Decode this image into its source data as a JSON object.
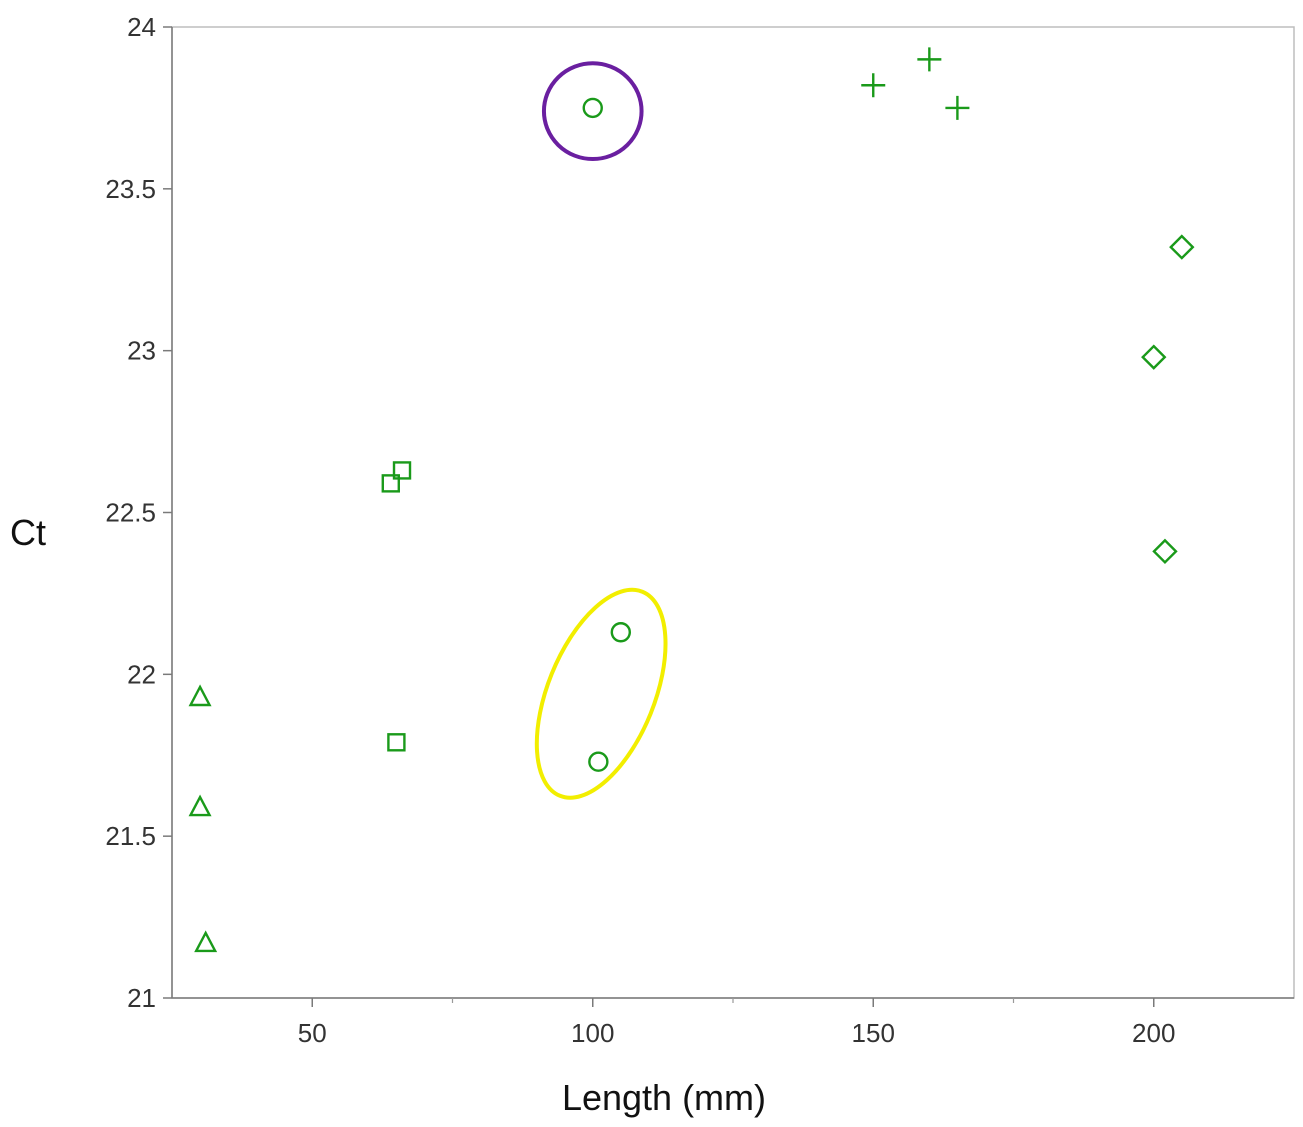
{
  "chart_data": {
    "type": "scatter",
    "title": "",
    "xlabel": "Length (mm)",
    "ylabel": "Ct",
    "xlim": [
      25,
      225
    ],
    "ylim": [
      21,
      24
    ],
    "grid": false,
    "legend": "none",
    "x_ticks": [
      {
        "value": 50,
        "label": "50"
      },
      {
        "value": 100,
        "label": "100"
      },
      {
        "value": 150,
        "label": "150"
      },
      {
        "value": 200,
        "label": "200"
      }
    ],
    "x_minor_ticks": [
      75,
      125,
      175
    ],
    "y_ticks": [
      {
        "value": 21,
        "label": "21"
      },
      {
        "value": 21.5,
        "label": "21.5"
      },
      {
        "value": 22,
        "label": "22"
      },
      {
        "value": 22.5,
        "label": "22.5"
      },
      {
        "value": 23,
        "label": "23"
      },
      {
        "value": 23.5,
        "label": "23.5"
      },
      {
        "value": 24,
        "label": "24"
      }
    ],
    "marker_color": "#1a9a1a",
    "series": [
      {
        "marker": "triangle",
        "points": [
          {
            "x": 30,
            "y": 21.93
          },
          {
            "x": 30,
            "y": 21.59
          },
          {
            "x": 31,
            "y": 21.17
          }
        ]
      },
      {
        "marker": "square",
        "points": [
          {
            "x": 64,
            "y": 22.59
          },
          {
            "x": 66,
            "y": 22.63
          },
          {
            "x": 65,
            "y": 21.79
          }
        ]
      },
      {
        "marker": "circle",
        "points": [
          {
            "x": 100,
            "y": 23.75
          },
          {
            "x": 105,
            "y": 22.13
          },
          {
            "x": 101,
            "y": 21.73
          }
        ]
      },
      {
        "marker": "plus",
        "points": [
          {
            "x": 150,
            "y": 23.82
          },
          {
            "x": 160,
            "y": 23.9
          },
          {
            "x": 165,
            "y": 23.75
          }
        ]
      },
      {
        "marker": "diamond",
        "points": [
          {
            "x": 205,
            "y": 23.32
          },
          {
            "x": 200,
            "y": 22.98
          },
          {
            "x": 202,
            "y": 22.38
          }
        ]
      }
    ],
    "highlights": [
      {
        "name": "purple-highlight",
        "color": "#6a1fa0",
        "cx": 100,
        "cy": 23.74,
        "rx": 8.7,
        "ry": 0.148,
        "rotate": 0
      },
      {
        "name": "yellow-highlight",
        "color": "#f2ee00",
        "cx": 101.5,
        "cy": 21.94,
        "rx": 9.5,
        "ry": 0.34,
        "rotate": 22
      }
    ]
  }
}
